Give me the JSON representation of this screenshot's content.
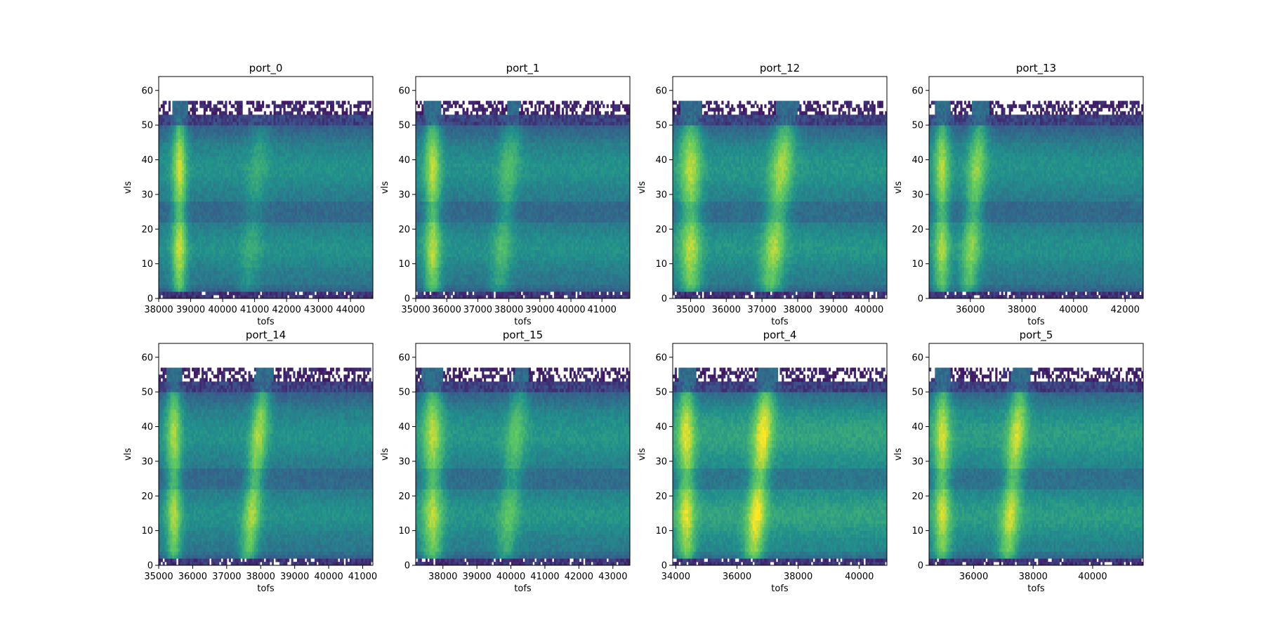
{
  "figure": {
    "background": "#ffffff"
  },
  "chart_data": [
    {
      "type": "heatmap",
      "title": "port_0",
      "xlabel": "tofs",
      "ylabel": "vls",
      "xlim": [
        38000,
        44700
      ],
      "ylim": [
        0,
        64
      ],
      "xticks": [
        38000,
        39000,
        40000,
        41000,
        42000,
        43000,
        44000
      ],
      "yticks": [
        0,
        10,
        20,
        30,
        40,
        50,
        60
      ],
      "bands": [
        {
          "center": 38650,
          "width": 220,
          "strength": 0.95
        },
        {
          "center": 41050,
          "width": 320,
          "strength": 0.28
        }
      ],
      "data_top": 57,
      "base_level": 0.5,
      "colormap": [
        "#440154",
        "#3b528b",
        "#21918c",
        "#5ec962",
        "#fde725"
      ]
    },
    {
      "type": "heatmap",
      "title": "port_1",
      "xlabel": "tofs",
      "ylabel": "vls",
      "xlim": [
        35000,
        41900
      ],
      "ylim": [
        0,
        64
      ],
      "xticks": [
        35000,
        36000,
        37000,
        38000,
        39000,
        40000,
        41000
      ],
      "yticks": [
        0,
        10,
        20,
        30,
        40,
        50,
        60
      ],
      "bands": [
        {
          "center": 35550,
          "width": 260,
          "strength": 0.9
        },
        {
          "center": 37950,
          "width": 320,
          "strength": 0.45
        }
      ],
      "data_top": 57,
      "base_level": 0.5,
      "colormap": [
        "#440154",
        "#3b528b",
        "#21918c",
        "#5ec962",
        "#fde725"
      ]
    },
    {
      "type": "heatmap",
      "title": "port_12",
      "xlabel": "tofs",
      "ylabel": "vls",
      "xlim": [
        34500,
        40500
      ],
      "ylim": [
        0,
        64
      ],
      "xticks": [
        35000,
        36000,
        37000,
        38000,
        39000,
        40000
      ],
      "yticks": [
        0,
        10,
        20,
        30,
        40,
        50,
        60
      ],
      "bands": [
        {
          "center": 35000,
          "width": 300,
          "strength": 0.85
        },
        {
          "center": 37500,
          "width": 320,
          "strength": 0.8
        }
      ],
      "data_top": 57,
      "base_level": 0.52,
      "colormap": [
        "#440154",
        "#3b528b",
        "#21918c",
        "#5ec962",
        "#fde725"
      ]
    },
    {
      "type": "heatmap",
      "title": "port_13",
      "xlabel": "tofs",
      "ylabel": "vls",
      "xlim": [
        34400,
        42700
      ],
      "ylim": [
        0,
        64
      ],
      "xticks": [
        36000,
        38000,
        40000,
        42000
      ],
      "yticks": [
        0,
        10,
        20,
        30,
        40,
        50,
        60
      ],
      "bands": [
        {
          "center": 34900,
          "width": 300,
          "strength": 0.85
        },
        {
          "center": 36200,
          "width": 360,
          "strength": 0.75
        }
      ],
      "data_top": 57,
      "base_level": 0.5,
      "colormap": [
        "#440154",
        "#3b528b",
        "#21918c",
        "#5ec962",
        "#fde725"
      ]
    },
    {
      "type": "heatmap",
      "title": "port_14",
      "xlabel": "tofs",
      "ylabel": "vls",
      "xlim": [
        35000,
        41300
      ],
      "ylim": [
        0,
        64
      ],
      "xticks": [
        35000,
        36000,
        37000,
        38000,
        39000,
        40000,
        41000
      ],
      "yticks": [
        0,
        10,
        20,
        30,
        40,
        50,
        60
      ],
      "bands": [
        {
          "center": 35450,
          "width": 220,
          "strength": 0.85
        },
        {
          "center": 37900,
          "width": 260,
          "strength": 0.85
        }
      ],
      "data_top": 57,
      "base_level": 0.5,
      "colormap": [
        "#440154",
        "#3b528b",
        "#21918c",
        "#5ec962",
        "#fde725"
      ]
    },
    {
      "type": "heatmap",
      "title": "port_15",
      "xlabel": "tofs",
      "ylabel": "vls",
      "xlim": [
        37200,
        43500
      ],
      "ylim": [
        0,
        64
      ],
      "xticks": [
        38000,
        39000,
        40000,
        41000,
        42000,
        43000
      ],
      "yticks": [
        0,
        10,
        20,
        30,
        40,
        50,
        60
      ],
      "bands": [
        {
          "center": 37700,
          "width": 300,
          "strength": 0.85
        },
        {
          "center": 40100,
          "width": 300,
          "strength": 0.5
        }
      ],
      "data_top": 57,
      "base_level": 0.52,
      "colormap": [
        "#440154",
        "#3b528b",
        "#21918c",
        "#5ec962",
        "#fde725"
      ]
    },
    {
      "type": "heatmap",
      "title": "port_4",
      "xlabel": "tofs",
      "ylabel": "vls",
      "xlim": [
        33900,
        40900
      ],
      "ylim": [
        0,
        64
      ],
      "xticks": [
        34000,
        36000,
        38000,
        40000
      ],
      "yticks": [
        0,
        10,
        20,
        30,
        40,
        50,
        60
      ],
      "bands": [
        {
          "center": 34350,
          "width": 280,
          "strength": 0.85
        },
        {
          "center": 36800,
          "width": 320,
          "strength": 0.95
        }
      ],
      "data_top": 57,
      "base_level": 0.58,
      "colormap": [
        "#440154",
        "#3b528b",
        "#21918c",
        "#5ec962",
        "#fde725"
      ]
    },
    {
      "type": "heatmap",
      "title": "port_5",
      "xlabel": "tofs",
      "ylabel": "vls",
      "xlim": [
        34500,
        41700
      ],
      "ylim": [
        0,
        64
      ],
      "xticks": [
        36000,
        38000,
        40000
      ],
      "yticks": [
        0,
        10,
        20,
        30,
        40,
        50,
        60
      ],
      "bands": [
        {
          "center": 34950,
          "width": 280,
          "strength": 0.85
        },
        {
          "center": 37400,
          "width": 320,
          "strength": 0.85
        }
      ],
      "data_top": 57,
      "base_level": 0.55,
      "colormap": [
        "#440154",
        "#3b528b",
        "#21918c",
        "#5ec962",
        "#fde725"
      ]
    }
  ]
}
